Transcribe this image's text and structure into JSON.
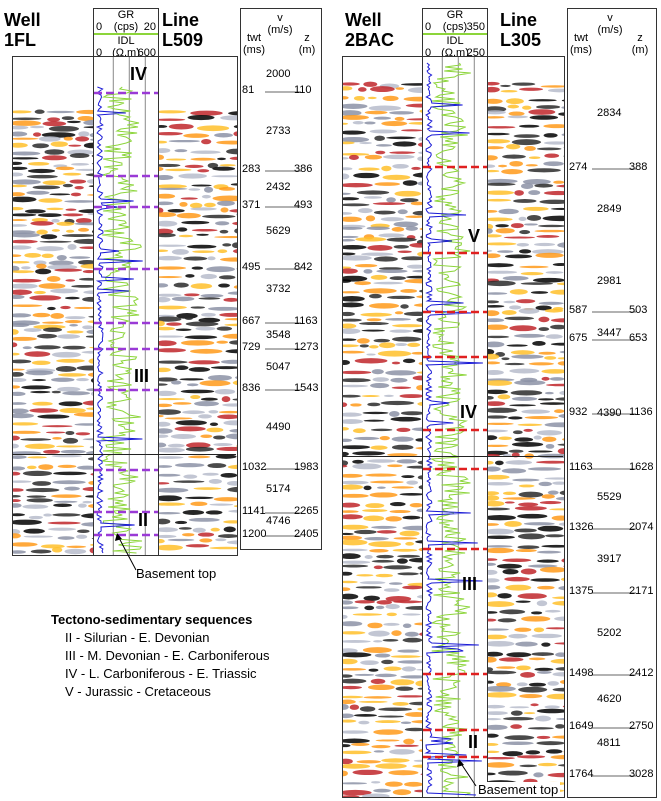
{
  "left": {
    "well_label": [
      "Well",
      "1FL"
    ],
    "line_label": [
      "Line",
      "L509"
    ],
    "gr": {
      "title": "GR",
      "min": "0",
      "unit": "(cps)",
      "max": "20"
    },
    "idl": {
      "title": "IDL",
      "min": "0",
      "unit": "(Ω.m)",
      "max": "600"
    },
    "table_headers": {
      "twt": "twt",
      "twt_unit": "(ms)",
      "v": "v",
      "v_unit": "(m/s)",
      "z": "z",
      "z_unit": "(m)"
    },
    "twt": [
      "81",
      "283",
      "371",
      "495",
      "667",
      "729",
      "836",
      "1032",
      "1141",
      "1200"
    ],
    "z": [
      "110",
      "386",
      "493",
      "842",
      "1163",
      "1273",
      "1543",
      "1983",
      "2265",
      "2405"
    ],
    "v": [
      "2000",
      "2733",
      "2432",
      "5629",
      "3732",
      "3548",
      "5047",
      "4490",
      "5174",
      "4746"
    ],
    "sequences": [
      "IV",
      "III",
      "II"
    ],
    "basement": "Basement top"
  },
  "right": {
    "well_label": [
      "Well",
      "2BAC"
    ],
    "line_label": [
      "Line",
      "L305"
    ],
    "gr": {
      "title": "GR",
      "min": "0",
      "unit": "(cps)",
      "max": "350"
    },
    "idl": {
      "title": "IDL",
      "min": "0",
      "unit": "(Ω.m)",
      "max": "250"
    },
    "table_headers": {
      "twt": "twt",
      "twt_unit": "(ms)",
      "v": "v",
      "v_unit": "(m/s)",
      "z": "z",
      "z_unit": "(m)"
    },
    "twt": [
      "274",
      "587",
      "675",
      "932",
      "1163",
      "1326",
      "1375",
      "1498",
      "1649",
      "1764"
    ],
    "z": [
      "388",
      "503",
      "653",
      "1136",
      "1628",
      "2074",
      "2171",
      "2412",
      "2750",
      "3028"
    ],
    "v": [
      "2834",
      "2849",
      "2981",
      "3447",
      "4390",
      "5529",
      "3917",
      "5202",
      "4620",
      "4811"
    ],
    "sequences": [
      "V",
      "IV",
      "III",
      "II"
    ],
    "basement": "Basement top"
  },
  "legend": {
    "title": "Tectono-sedimentary sequences",
    "items": [
      "II - Silurian - E. Devonian",
      "III - M. Devonian - E. Carboniferous",
      "IV - L. Carboniferous - E. Triassic",
      "V - Jurassic - Cretaceous"
    ]
  },
  "colors": {
    "gr": "#8cd53a",
    "idl": "#1a1ad6",
    "left_marker": "#9a3ad6",
    "right_marker": "#e02020"
  }
}
